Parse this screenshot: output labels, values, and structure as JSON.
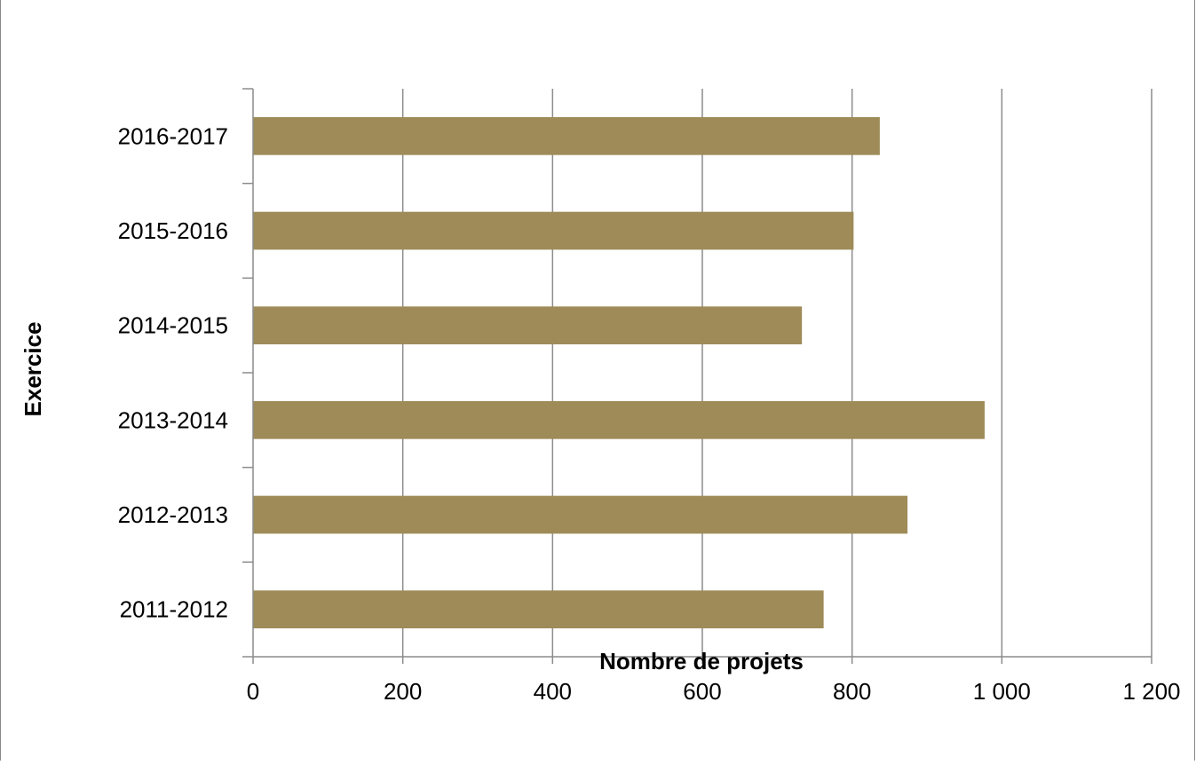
{
  "chart_data": {
    "type": "bar",
    "orientation": "horizontal",
    "title": "",
    "xlabel": "Nombre de projets",
    "ylabel": "Exercice",
    "categories": [
      "2011-2012",
      "2012-2013",
      "2013-2014",
      "2014-2015",
      "2015-2016",
      "2016-2017"
    ],
    "values": [
      762,
      874,
      977,
      733,
      802,
      837
    ],
    "xlim": [
      0,
      1200
    ],
    "xticks": [
      0,
      200,
      400,
      600,
      800,
      1000,
      1200
    ],
    "xtick_labels": [
      "0",
      "200",
      "400",
      "600",
      "800",
      "1 000",
      "1 200"
    ],
    "grid": "vertical",
    "legend": "none",
    "bar_color": "#9e8b58"
  }
}
